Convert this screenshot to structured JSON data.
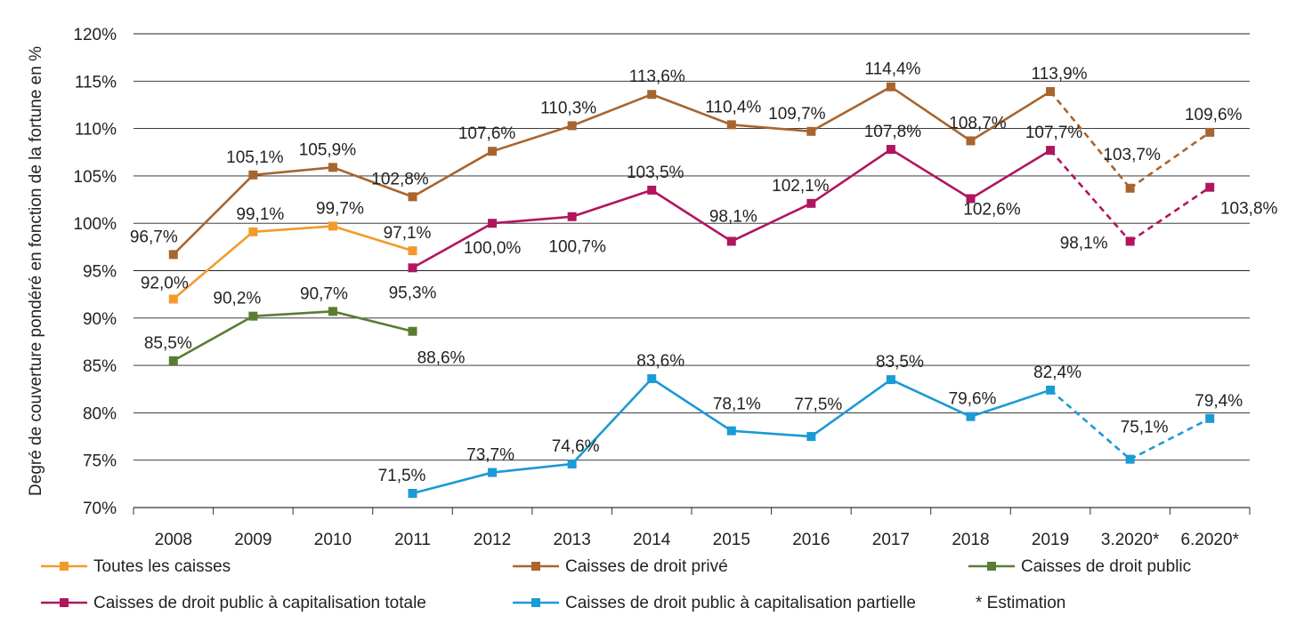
{
  "chart_data": {
    "type": "line",
    "title": "",
    "ylabel": "Degré de couverture pondéré en fonction de la fortune en %",
    "xlabel": "",
    "categories": [
      "2008",
      "2009",
      "2010",
      "2011",
      "2012",
      "2013",
      "2014",
      "2015",
      "2016",
      "2017",
      "2018",
      "2019",
      "3.2020*",
      "6.2020*"
    ],
    "ylim": [
      70,
      120
    ],
    "yticks": [
      70,
      75,
      80,
      85,
      90,
      95,
      100,
      105,
      110,
      115,
      120
    ],
    "ytick_labels": [
      "70%",
      "75%",
      "80%",
      "85%",
      "90%",
      "95%",
      "100%",
      "105%",
      "110%",
      "115%",
      "120%"
    ],
    "grid": "horizontal",
    "legend_position": "bottom",
    "estimated_from_index": 11,
    "series": [
      {
        "name": "Toutes les caisses",
        "color": "#f39a2b",
        "values": [
          92.0,
          99.1,
          99.7,
          97.1,
          null,
          null,
          null,
          null,
          null,
          null,
          null,
          null,
          null,
          null
        ],
        "labels": [
          "92,0%",
          "99,1%",
          "99,7%",
          "97,1%",
          null,
          null,
          null,
          null,
          null,
          null,
          null,
          null,
          null,
          null
        ]
      },
      {
        "name": "Caisses de droit privé",
        "color": "#a8652e",
        "values": [
          96.7,
          105.1,
          105.9,
          102.8,
          107.6,
          110.3,
          113.6,
          110.4,
          109.7,
          114.4,
          108.7,
          113.9,
          103.7,
          109.6
        ],
        "labels": [
          "96,7%",
          "105,1%",
          "105,9%",
          "102,8%",
          "107,6%",
          "110,3%",
          "113,6%",
          "110,4%",
          "109,7%",
          "114,4%",
          "108,7%",
          "113,9%",
          "103,7%",
          "109,6%"
        ]
      },
      {
        "name": "Caisses de droit public",
        "color": "#5a7d34",
        "values": [
          85.5,
          90.2,
          90.7,
          88.6,
          null,
          null,
          null,
          null,
          null,
          null,
          null,
          null,
          null,
          null
        ],
        "labels": [
          "85,5%",
          "90,2%",
          "90,7%",
          "88,6%",
          null,
          null,
          null,
          null,
          null,
          null,
          null,
          null,
          null,
          null
        ]
      },
      {
        "name": "Caisses de droit public à capitalisation totale",
        "color": "#b0155f",
        "values": [
          null,
          null,
          null,
          95.3,
          100.0,
          100.7,
          103.5,
          98.1,
          102.1,
          107.8,
          102.6,
          107.7,
          98.1,
          103.8
        ],
        "labels": [
          null,
          null,
          null,
          "95,3%",
          "100,0%",
          "100,7%",
          "103,5%",
          "98,1%",
          "102,1%",
          "107,8%",
          "102,6%",
          "107,7%",
          "98,1%",
          "103,8%"
        ]
      },
      {
        "name": "Caisses de droit public à capitalisation partielle",
        "color": "#1b9ad6",
        "values": [
          null,
          null,
          null,
          71.5,
          73.7,
          74.6,
          83.6,
          78.1,
          77.5,
          83.5,
          79.6,
          82.4,
          75.1,
          79.4
        ],
        "labels": [
          null,
          null,
          null,
          "71,5%",
          "73,7%",
          "74,6%",
          "83,6%",
          "78,1%",
          "77,5%",
          "83,5%",
          "79,6%",
          "82,4%",
          "75,1%",
          "79,4%"
        ]
      }
    ],
    "legend_note": "* Estimation"
  }
}
